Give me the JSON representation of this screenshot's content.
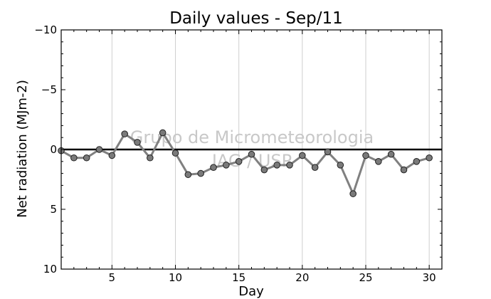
{
  "chart_data": {
    "type": "line",
    "title": "Daily values - Sep/11",
    "xlabel": "Day",
    "ylabel": "Net radiation (MJm-2)",
    "xlim": [
      1,
      31
    ],
    "ylim": [
      10,
      -10
    ],
    "y_inverted": true,
    "x_ticks": [
      5,
      10,
      15,
      20,
      25,
      30
    ],
    "y_ticks": [
      -10,
      -5,
      0,
      5,
      10
    ],
    "y_tick_labels": [
      "−10",
      "−5",
      "0",
      "5",
      "10"
    ],
    "grid": "vertical",
    "zero_line": 0,
    "watermark": [
      "Grupo de Micrometeorologia",
      "IAG / USP"
    ],
    "series": [
      {
        "line_color": "#808080",
        "marker_color": "#7a7a7a",
        "x": [
          1,
          2,
          3,
          4,
          5,
          6,
          7,
          8,
          9,
          10,
          11,
          12,
          13,
          14,
          15,
          16,
          17,
          18,
          19,
          20,
          21,
          22,
          23,
          24,
          25,
          26,
          27,
          28,
          29,
          30
        ],
        "y": [
          0.1,
          0.7,
          0.7,
          0.0,
          0.5,
          -1.3,
          -0.6,
          0.7,
          -1.4,
          0.3,
          2.1,
          2.0,
          1.5,
          1.3,
          1.0,
          0.4,
          1.7,
          1.3,
          1.3,
          0.5,
          1.5,
          0.2,
          1.3,
          3.7,
          0.5,
          1.0,
          0.4,
          1.7,
          1.0,
          0.7
        ]
      }
    ]
  }
}
